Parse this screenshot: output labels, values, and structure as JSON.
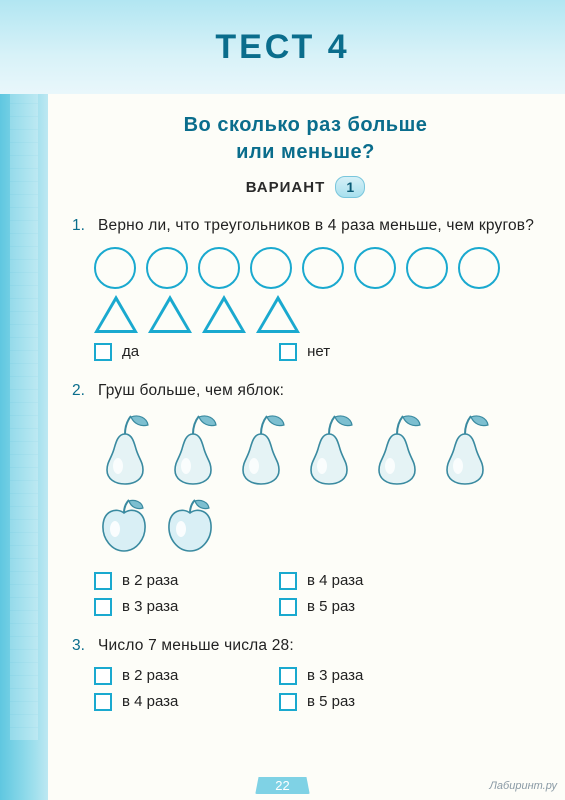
{
  "header": {
    "title": "ТЕСТ 4"
  },
  "subtitle_line1": "Во сколько раз больше",
  "subtitle_line2": "или меньше?",
  "variant": {
    "label": "ВАРИАНТ",
    "num": "1"
  },
  "q1": {
    "num": "1.",
    "text": "Верно ли, что треугольников в 4 раза меньше, чем кругов?",
    "circles_count": 8,
    "triangles_count": 4,
    "opt_yes": "да",
    "opt_no": "нет",
    "shape_color": "#1aa9cf"
  },
  "q2": {
    "num": "2.",
    "text": "Груш больше, чем яблок:",
    "pears_count": 6,
    "apples_count": 2,
    "opts": {
      "a": "в 2 раза",
      "b": "в 4 раза",
      "c": "в 3 раза",
      "d": "в 5 раз"
    }
  },
  "q3": {
    "num": "3.",
    "text": "Число 7 меньше числа 28:",
    "opts": {
      "a": "в 2 раза",
      "b": "в 3 раза",
      "c": "в 4 раза",
      "d": "в 5 раз"
    }
  },
  "page_number": "22",
  "watermark": "Лабиринт.ру",
  "colors": {
    "accent": "#0a6d8c",
    "shape_stroke": "#1aa9cf",
    "header_bg_top": "#b2e6f2",
    "header_bg_bot": "#e9f7fb",
    "page_bg": "#fdfdf8",
    "spine": "#5fc7e0",
    "checkbox_border": "#1aa9cf",
    "text": "#222222"
  },
  "fruit_colors": {
    "pear_body": "#e5f3f5",
    "pear_stroke": "#3a8aa0",
    "leaf_fill": "#7dbfd0",
    "apple_body": "#d9eff5",
    "apple_stroke": "#3a8aa0"
  }
}
